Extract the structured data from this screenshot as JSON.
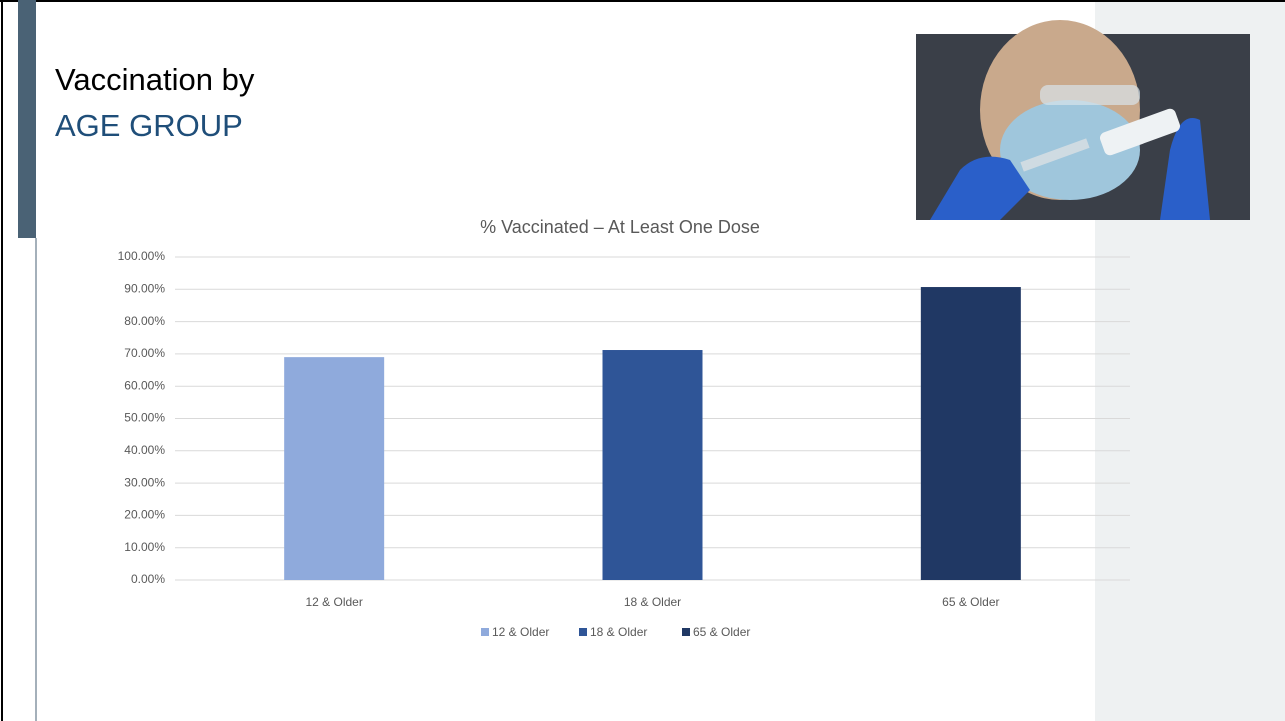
{
  "header": {
    "title": "Vaccination by",
    "subtitle": "AGE GROUP"
  },
  "chart_data": {
    "type": "bar",
    "title": "% Vaccinated – At Least One Dose",
    "categories": [
      "12 & Older",
      "18 & Older",
      "65 & Older"
    ],
    "values": [
      69.0,
      71.2,
      90.7
    ],
    "colors": [
      "#8faadc",
      "#2f5597",
      "#203864"
    ],
    "ylim": [
      0,
      100
    ],
    "yticks": [
      {
        "value": 0,
        "label": "0.00%"
      },
      {
        "value": 10,
        "label": "10.00%"
      },
      {
        "value": 20,
        "label": "20.00%"
      },
      {
        "value": 30,
        "label": "30.00%"
      },
      {
        "value": 40,
        "label": "40.00%"
      },
      {
        "value": 50,
        "label": "50.00%"
      },
      {
        "value": 60,
        "label": "60.00%"
      },
      {
        "value": 70,
        "label": "70.00%"
      },
      {
        "value": 80,
        "label": "80.00%"
      },
      {
        "value": 90,
        "label": "90.00%"
      },
      {
        "value": 100,
        "label": "100.00%"
      }
    ],
    "grid": true,
    "legend": "bottom"
  }
}
